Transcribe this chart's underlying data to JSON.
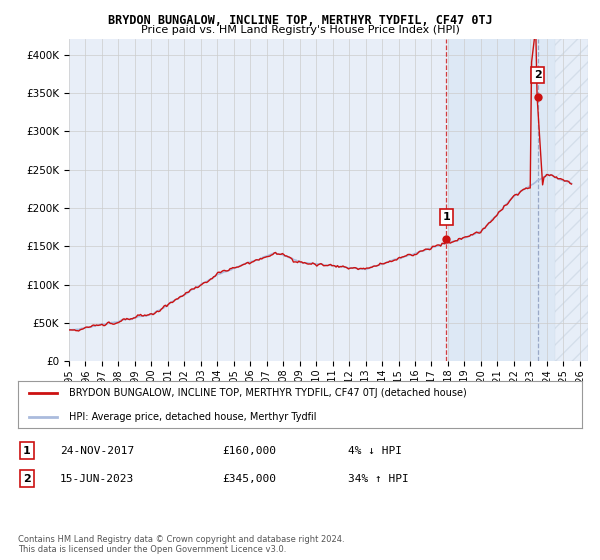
{
  "title": "BRYDON BUNGALOW, INCLINE TOP, MERTHYR TYDFIL, CF47 0TJ",
  "subtitle": "Price paid vs. HM Land Registry's House Price Index (HPI)",
  "legend_line1": "BRYDON BUNGALOW, INCLINE TOP, MERTHYR TYDFIL, CF47 0TJ (detached house)",
  "legend_line2": "HPI: Average price, detached house, Merthyr Tydfil",
  "note1": "24-NOV-2017",
  "note2": "15-JUN-2023",
  "price1": "£160,000",
  "price2": "£345,000",
  "pct1": "4% ↓ HPI",
  "pct2": "34% ↑ HPI",
  "marker1_year": 2017.9,
  "marker1_value": 160000,
  "marker2_year": 2023.45,
  "marker2_value": 345000,
  "hpi_color": "#aabbdd",
  "house_color": "#cc1111",
  "marker_color": "#cc1111",
  "background_color": "#e8eef8",
  "shade_color": "#d0dcf0",
  "grid_color": "#cccccc",
  "ylim": [
    0,
    420000
  ],
  "xlim_start": 1995.0,
  "xlim_end": 2026.5,
  "footer": "Contains HM Land Registry data © Crown copyright and database right 2024.\nThis data is licensed under the Open Government Licence v3.0."
}
